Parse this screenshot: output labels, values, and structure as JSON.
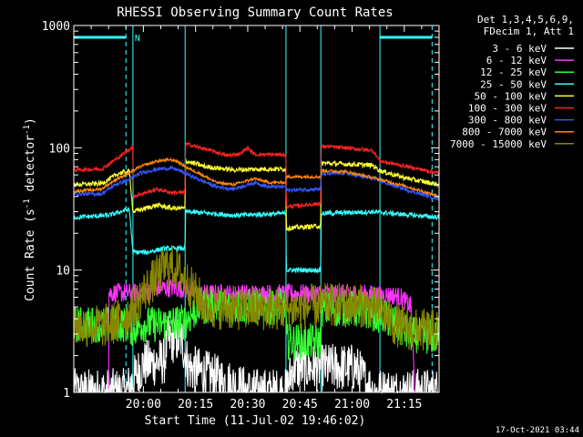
{
  "chart_data": {
    "type": "line",
    "title": "RHESSI Observing Summary Count Rates",
    "xlabel": "Start Time (11-Jul-02 19:46:02)",
    "ylabel_main": "Count Rate (s",
    "ylabel_sup1": "-1",
    "ylabel_mid": " detector",
    "ylabel_sup2": "-1",
    "ylabel_end": ")",
    "x_range_min": [
      -6,
      99
    ],
    "y_range": [
      1,
      1000
    ],
    "y_scale": "log",
    "x_ticks": [
      {
        "t": 14,
        "label": "20:00"
      },
      {
        "t": 29,
        "label": "20:15"
      },
      {
        "t": 44,
        "label": "20:30"
      },
      {
        "t": 59,
        "label": "20:45"
      },
      {
        "t": 74,
        "label": "21:00"
      },
      {
        "t": 89,
        "label": "21:15"
      }
    ],
    "y_ticks": [
      {
        "v": 1,
        "label": "1"
      },
      {
        "v": 10,
        "label": "10"
      },
      {
        "v": 100,
        "label": "100"
      },
      {
        "v": 1000,
        "label": "1000"
      }
    ],
    "legend_header": [
      "Det 1,3,4,5,6,9,",
      "FDecim 1, Att 1"
    ],
    "attenuator_marker": "N",
    "attenuator_level": 800,
    "intervals": {
      "eclipse": [
        [
          -6,
          9
        ],
        [
          82,
          99
        ]
      ],
      "saa": [
        [
          55,
          65
        ]
      ],
      "attenuator": [
        [
          -6,
          9
        ],
        [
          82,
          97
        ]
      ],
      "attenuator_marker_at": 11,
      "vlines": [
        {
          "t": 9,
          "style": "dashed"
        },
        {
          "t": 11,
          "style": "solid"
        },
        {
          "t": 26,
          "style": "solid"
        },
        {
          "t": 55,
          "style": "solid"
        },
        {
          "t": 65,
          "style": "solid"
        },
        {
          "t": 82,
          "style": "solid"
        },
        {
          "t": 97,
          "style": "dashed"
        }
      ]
    },
    "series": [
      {
        "name": "3 - 6 keV",
        "color": "#ffffff",
        "noise": 0.2,
        "range": [
          -6,
          99
        ],
        "points": [
          [
            -6,
            1
          ],
          [
            9,
            1
          ],
          [
            14,
            1.7
          ],
          [
            20,
            1.8
          ],
          [
            21,
            2.7
          ],
          [
            25,
            2.7
          ],
          [
            27,
            1.6
          ],
          [
            35,
            1.3
          ],
          [
            45,
            1
          ],
          [
            55,
            1
          ],
          [
            57,
            1.6
          ],
          [
            67,
            1.6
          ],
          [
            75,
            1.6
          ],
          [
            80,
            1
          ],
          [
            99,
            1
          ]
        ]
      },
      {
        "name": "6 - 12 keV",
        "color": "#ff33ff",
        "noise": 0.08,
        "range": [
          4,
          92
        ],
        "points": [
          [
            4,
            1
          ],
          [
            4.1,
            6.5
          ],
          [
            10,
            6.5
          ],
          [
            14,
            6.6
          ],
          [
            18,
            7.1
          ],
          [
            22,
            7.2
          ],
          [
            26,
            7
          ],
          [
            30,
            6.4
          ],
          [
            40,
            6.4
          ],
          [
            55,
            6.4
          ],
          [
            58,
            6.4
          ],
          [
            65,
            6.4
          ],
          [
            75,
            6.4
          ],
          [
            86,
            6.2
          ],
          [
            88,
            6
          ],
          [
            91,
            5
          ],
          [
            92,
            1
          ]
        ]
      },
      {
        "name": "12 - 25 keV",
        "color": "#33ff33",
        "noise": 0.15,
        "range": [
          -6,
          99
        ],
        "points": [
          [
            -6,
            3.6
          ],
          [
            9,
            3.6
          ],
          [
            11,
            3.3
          ],
          [
            14,
            3.6
          ],
          [
            18,
            3.6
          ],
          [
            26,
            3.8
          ],
          [
            30,
            5
          ],
          [
            40,
            5
          ],
          [
            55,
            5
          ],
          [
            55.1,
            2.6
          ],
          [
            65,
            2.6
          ],
          [
            65.1,
            4.8
          ],
          [
            75,
            4.8
          ],
          [
            82,
            4.3
          ],
          [
            86,
            3.7
          ],
          [
            90,
            3
          ],
          [
            99,
            2.8
          ]
        ]
      },
      {
        "name": "25 - 50 keV",
        "color": "#33ffff",
        "noise": 0.02,
        "range": [
          -6,
          99
        ],
        "points": [
          [
            -6,
            27
          ],
          [
            4,
            28
          ],
          [
            9,
            31
          ],
          [
            10,
            31
          ],
          [
            11,
            14
          ],
          [
            15,
            14
          ],
          [
            20,
            15
          ],
          [
            26,
            15
          ],
          [
            26.1,
            30
          ],
          [
            34,
            29
          ],
          [
            40,
            28
          ],
          [
            54,
            29
          ],
          [
            55,
            29
          ],
          [
            55.1,
            10
          ],
          [
            65,
            10
          ],
          [
            65.1,
            29
          ],
          [
            80,
            30
          ],
          [
            92,
            28
          ],
          [
            99,
            27
          ]
        ]
      },
      {
        "name": "50 - 100 keV",
        "color": "#ffff33",
        "noise": 0.02,
        "range": [
          -6,
          99
        ],
        "points": [
          [
            -6,
            50
          ],
          [
            2,
            51
          ],
          [
            7,
            62
          ],
          [
            10,
            64
          ],
          [
            11,
            30
          ],
          [
            18,
            34
          ],
          [
            22,
            32
          ],
          [
            26,
            32
          ],
          [
            26.1,
            78
          ],
          [
            32,
            70
          ],
          [
            40,
            66
          ],
          [
            48,
            67
          ],
          [
            54,
            67
          ],
          [
            55,
            67
          ],
          [
            55.1,
            22
          ],
          [
            65,
            23
          ],
          [
            65.1,
            75
          ],
          [
            80,
            72
          ],
          [
            82,
            65
          ],
          [
            90,
            56
          ],
          [
            99,
            50
          ]
        ]
      },
      {
        "name": "100 - 300 keV",
        "color": "#ff2222",
        "noise": 0.015,
        "range": [
          -6,
          99
        ],
        "points": [
          [
            -6,
            66
          ],
          [
            2,
            67
          ],
          [
            7,
            84
          ],
          [
            11,
            102
          ],
          [
            11.1,
            40
          ],
          [
            18,
            46
          ],
          [
            22,
            43
          ],
          [
            26,
            43
          ],
          [
            26.1,
            108
          ],
          [
            34,
            94
          ],
          [
            38,
            86
          ],
          [
            42,
            90
          ],
          [
            44,
            100
          ],
          [
            46,
            88
          ],
          [
            54,
            88
          ],
          [
            55,
            88
          ],
          [
            55.1,
            33
          ],
          [
            65,
            35
          ],
          [
            65.1,
            103
          ],
          [
            72,
            100
          ],
          [
            80,
            95
          ],
          [
            82,
            78
          ],
          [
            90,
            70
          ],
          [
            99,
            62
          ]
        ]
      },
      {
        "name": "300 - 800 keV",
        "color": "#3355ff",
        "noise": 0.015,
        "range": [
          -6,
          99
        ],
        "points": [
          [
            -6,
            42
          ],
          [
            2,
            42
          ],
          [
            6,
            50
          ],
          [
            10,
            55
          ],
          [
            13,
            62
          ],
          [
            18,
            67
          ],
          [
            22,
            68
          ],
          [
            24,
            66
          ],
          [
            26,
            62
          ],
          [
            30,
            55
          ],
          [
            35,
            48
          ],
          [
            40,
            46
          ],
          [
            44,
            50
          ],
          [
            46,
            52
          ],
          [
            50,
            48
          ],
          [
            54,
            48
          ],
          [
            55,
            48
          ],
          [
            55.1,
            45
          ],
          [
            65,
            46
          ],
          [
            65.1,
            61
          ],
          [
            72,
            62
          ],
          [
            80,
            56
          ],
          [
            90,
            45
          ],
          [
            99,
            38
          ]
        ]
      },
      {
        "name": "800 - 7000 keV",
        "color": "#ff8800",
        "noise": 0.012,
        "range": [
          -6,
          99
        ],
        "points": [
          [
            -6,
            44
          ],
          [
            2,
            46
          ],
          [
            6,
            55
          ],
          [
            10,
            62
          ],
          [
            13,
            70
          ],
          [
            18,
            78
          ],
          [
            22,
            80
          ],
          [
            24,
            77
          ],
          [
            26,
            70
          ],
          [
            30,
            62
          ],
          [
            35,
            52
          ],
          [
            40,
            50
          ],
          [
            44,
            54
          ],
          [
            46,
            56
          ],
          [
            50,
            52
          ],
          [
            54,
            52
          ],
          [
            55,
            52
          ],
          [
            55.1,
            58
          ],
          [
            65,
            58
          ],
          [
            65.1,
            65
          ],
          [
            72,
            64
          ],
          [
            80,
            57
          ],
          [
            90,
            48
          ],
          [
            99,
            40
          ]
        ]
      },
      {
        "name": "7000 - 15000 keV",
        "color": "#888800",
        "noise": 0.18,
        "range": [
          -6,
          99
        ],
        "points": [
          [
            -6,
            3.5
          ],
          [
            4,
            3.5
          ],
          [
            9,
            4.2
          ],
          [
            11,
            4.8
          ],
          [
            14,
            6.5
          ],
          [
            18,
            9
          ],
          [
            21,
            11
          ],
          [
            24,
            10
          ],
          [
            28,
            7
          ],
          [
            32,
            5
          ],
          [
            42,
            4.8
          ],
          [
            55,
            4.8
          ],
          [
            58,
            4.8
          ],
          [
            65,
            5.2
          ],
          [
            75,
            5.2
          ],
          [
            82,
            4.8
          ],
          [
            86,
            3.6
          ],
          [
            92,
            3.2
          ],
          [
            99,
            3.2
          ]
        ]
      }
    ]
  },
  "footer": {
    "timestamp": "17-Oct-2021 03:44"
  }
}
